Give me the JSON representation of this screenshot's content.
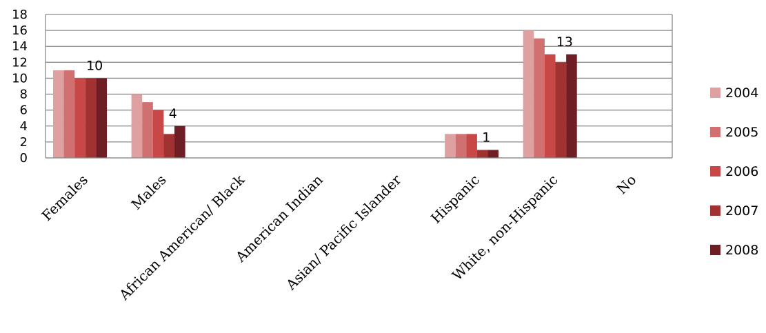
{
  "chart_data": {
    "type": "bar",
    "categories": [
      "Females",
      "Males",
      "African American/ Black",
      "American Indian",
      "Asian/ Pacific Islander",
      "Hispanic",
      "White, non-Hispanic",
      "No"
    ],
    "series": [
      {
        "name": "2004",
        "color": "#dea0a0",
        "values": [
          11,
          8,
          0,
          0,
          0,
          3,
          16,
          0
        ]
      },
      {
        "name": "2005",
        "color": "#d07070",
        "values": [
          11,
          7,
          0,
          0,
          0,
          3,
          15,
          0
        ]
      },
      {
        "name": "2006",
        "color": "#c84848",
        "values": [
          10,
          6,
          0,
          0,
          0,
          3,
          13,
          0
        ]
      },
      {
        "name": "2007",
        "color": "#a03232",
        "values": [
          10,
          3,
          0,
          0,
          0,
          1,
          12,
          0
        ]
      },
      {
        "name": "2008",
        "color": "#6e1e24",
        "values": [
          10,
          4,
          0,
          0,
          0,
          1,
          13,
          0
        ]
      }
    ],
    "data_labels": [
      {
        "category": "Females",
        "text": "10"
      },
      {
        "category": "Males",
        "text": "4"
      },
      {
        "category": "Hispanic",
        "text": "1"
      },
      {
        "category": "White, non-Hispanic",
        "text": "13"
      }
    ],
    "yticks": [
      0,
      2,
      4,
      6,
      8,
      10,
      12,
      14,
      16,
      18
    ],
    "ylim": [
      0,
      18
    ],
    "grid": true,
    "legend_position": "right"
  }
}
